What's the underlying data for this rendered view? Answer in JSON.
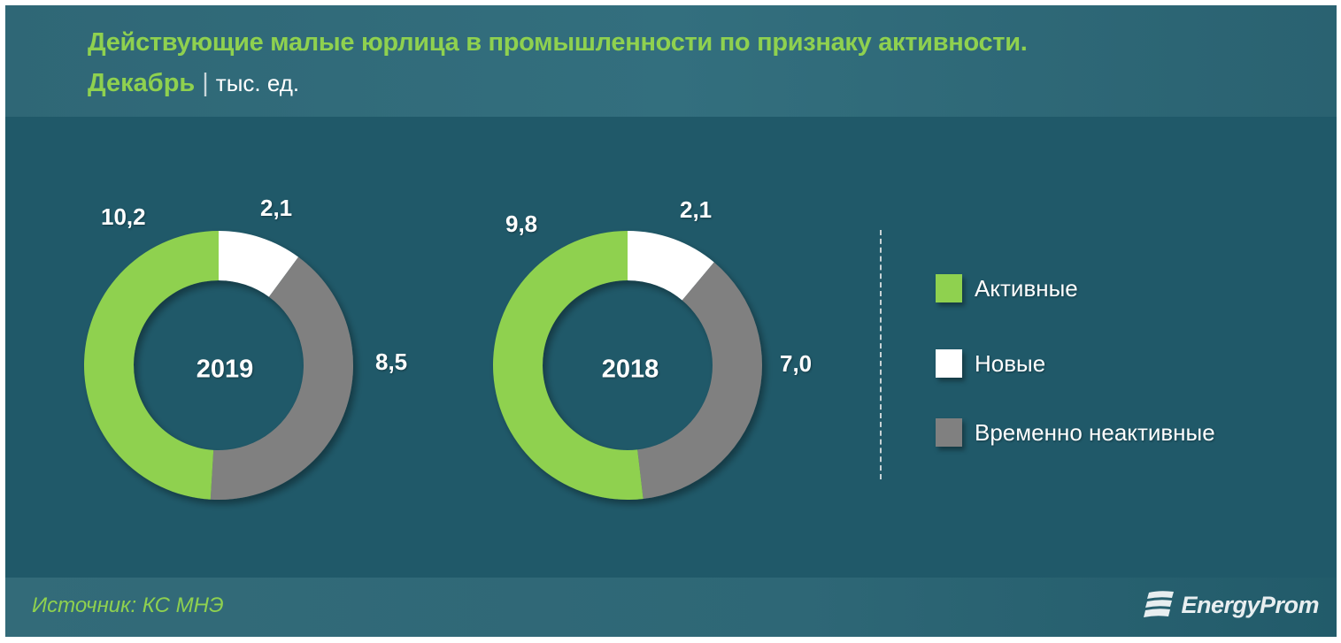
{
  "header": {
    "title": "Действующие малые юрлица в промышленности по признаку активности.",
    "month": "Декабрь",
    "separator": "|",
    "unit": "тыс. ед."
  },
  "colors": {
    "active": "#8fd14f",
    "new": "#ffffff",
    "inactive": "#808080",
    "background": "#205969",
    "title": "#8fd14f"
  },
  "legend": [
    {
      "label": "Активные",
      "color": "#8fd14f"
    },
    {
      "label": "Новые",
      "color": "#ffffff"
    },
    {
      "label": "Временно неактивные",
      "color": "#808080"
    }
  ],
  "donuts": [
    {
      "year": "2019",
      "labels": {
        "active": "10,2",
        "new": "2,1",
        "inactive": "8,5"
      }
    },
    {
      "year": "2018",
      "labels": {
        "active": "9,8",
        "new": "2,1",
        "inactive": "7,0"
      }
    }
  ],
  "footer": {
    "source": "Источник: КС МНЭ",
    "brand": "EnergyProm"
  },
  "chart_data": {
    "type": "pie",
    "subtype": "donut",
    "title": "Действующие малые юрлица в промышленности по признаку активности. Декабрь | тыс. ед.",
    "unit": "тыс. ед.",
    "categories": [
      "Активные",
      "Новые",
      "Временно неактивные"
    ],
    "series": [
      {
        "name": "2019",
        "values": [
          10.2,
          2.1,
          8.5
        ]
      },
      {
        "name": "2018",
        "values": [
          9.8,
          2.1,
          7.0
        ]
      }
    ],
    "legend_position": "right",
    "source": "Источник: КС МНЭ"
  }
}
